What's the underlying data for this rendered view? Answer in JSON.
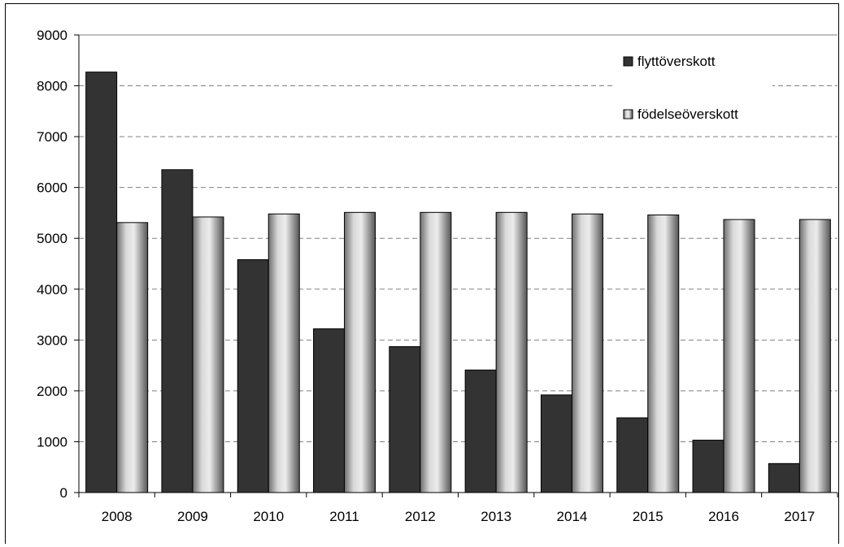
{
  "chart_data": {
    "type": "bar",
    "title": "",
    "xlabel": "",
    "ylabel": "",
    "categories": [
      "2008",
      "2009",
      "2010",
      "2011",
      "2012",
      "2013",
      "2014",
      "2015",
      "2016",
      "2017"
    ],
    "series": [
      {
        "name": "flyttöverskott",
        "color": "#333333",
        "values": [
          8270,
          6350,
          4580,
          3220,
          2870,
          2410,
          1920,
          1470,
          1030,
          570
        ]
      },
      {
        "name": "födelseöverskott",
        "color": "#b3b3b3",
        "values": [
          5310,
          5420,
          5480,
          5510,
          5510,
          5510,
          5480,
          5460,
          5370,
          5370
        ]
      }
    ],
    "ylim": [
      0,
      9000
    ],
    "yticks": [
      0,
      1000,
      2000,
      3000,
      4000,
      5000,
      6000,
      7000,
      8000,
      9000
    ],
    "grid": true,
    "legend_position": "top-right"
  }
}
